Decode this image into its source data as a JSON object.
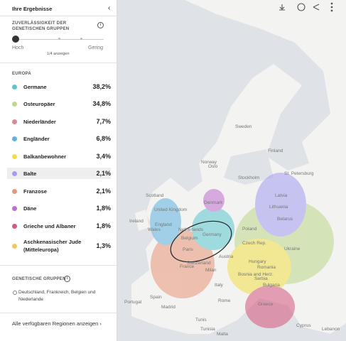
{
  "header": {
    "title": "Ihre Ergebnisse"
  },
  "reliability": {
    "label": "ZUVERLÄSSIGKEIT DER GENETISCHEN GRUPPEN",
    "low": "Hoch",
    "high": "Gering",
    "show": "1/4 anzeigen"
  },
  "region": {
    "title": "EUROPA",
    "items": [
      {
        "name": "Germane",
        "percent": "38,2%",
        "color": "#5cc6cf"
      },
      {
        "name": "Osteuropäer",
        "percent": "34,8%",
        "color": "#bcd98a"
      },
      {
        "name": "Niederländer",
        "percent": "7,7%",
        "color": "#d98c90"
      },
      {
        "name": "Engländer",
        "percent": "6,8%",
        "color": "#5fb2e0"
      },
      {
        "name": "Balkanbewohner",
        "percent": "3,4%",
        "color": "#f2df45"
      },
      {
        "name": "Balte",
        "percent": "2,1%",
        "color": "#a49df0"
      },
      {
        "name": "Franzose",
        "percent": "2,1%",
        "color": "#e8957a"
      },
      {
        "name": "Däne",
        "percent": "1,8%",
        "color": "#c06dd0"
      },
      {
        "name": "Grieche und Albaner",
        "percent": "1,8%",
        "color": "#d6577f"
      },
      {
        "name": "Aschkenasischer Jude (Mitteleuropa)",
        "percent": "1,3%",
        "color": "#f5c65a"
      }
    ]
  },
  "groups": {
    "title": "GENETISCHE GRUPPEN",
    "text": "Deutschland, Frankreich, Belgien und Niederlande"
  },
  "footer": {
    "link": "Alle verfügbaren Regionen anzeigen"
  },
  "map": {
    "labels": [
      "Sweden",
      "Finland",
      "Norway",
      "Latvia",
      "Lithuania",
      "Belarus",
      "Denmark",
      "Scotland",
      "United Kingdom",
      "Ireland",
      "England",
      "Wales",
      "Netherlands",
      "Belgium",
      "Germany",
      "Poland",
      "Czech Rep.",
      "Austria",
      "Hungary",
      "Ukraine",
      "Romania",
      "Bosnia and Herz.",
      "Bulgaria",
      "Switzerland",
      "France",
      "Italy",
      "Spain",
      "Portugal",
      "Greece",
      "Cyprus",
      "Lebanon",
      "Tunisia",
      "Oslo",
      "Stockholm",
      "St. Petersburg",
      "Paris",
      "Milan",
      "Rome",
      "Madrid",
      "Tunis",
      "Malta",
      "Serbia"
    ]
  }
}
